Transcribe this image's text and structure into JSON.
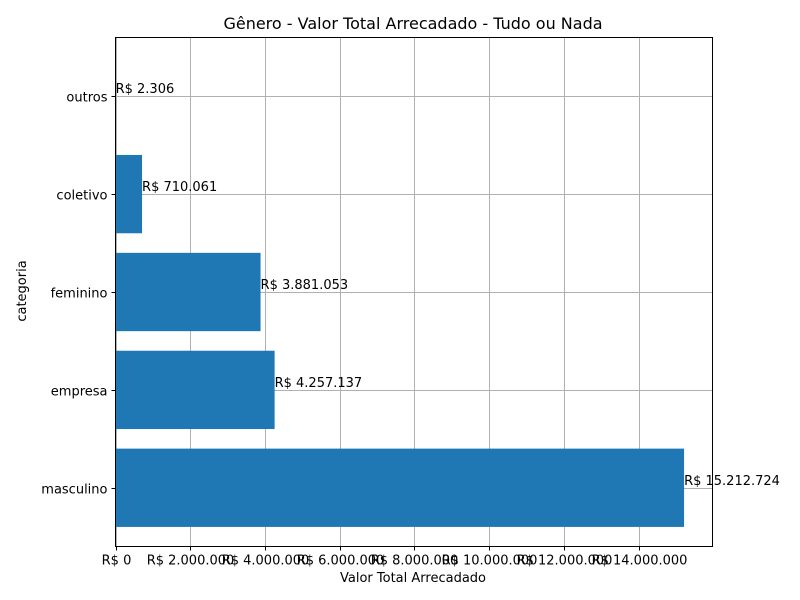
{
  "chart_data": {
    "type": "bar",
    "orientation": "horizontal",
    "title": "Gênero - Valor Total Arrecadado - Tudo ou Nada",
    "xlabel": "Valor Total Arrecadado",
    "ylabel": "categoria",
    "categories": [
      "masculino",
      "empresa",
      "feminino",
      "coletivo",
      "outros"
    ],
    "values": [
      15212724,
      4257137,
      3881053,
      710061,
      2306
    ],
    "data_labels": [
      "R$ 15.212.724",
      "R$ 4.257.137",
      "R$ 3.881.053",
      "R$ 710.061",
      "R$ 2.306"
    ],
    "xticks": [
      0,
      2000000,
      4000000,
      6000000,
      8000000,
      10000000,
      12000000,
      14000000
    ],
    "xtick_labels": [
      "R$ 0",
      "R$ 2.000.000",
      "R$ 4.000.000",
      "R$ 6.000.000",
      "R$ 8.000.000",
      "R$ 10.000.000",
      "R$ 12.000.000",
      "R$ 14.000.000"
    ],
    "xlim": [
      0,
      15973360
    ],
    "grid": true,
    "bar_color": "#1f77b4"
  }
}
